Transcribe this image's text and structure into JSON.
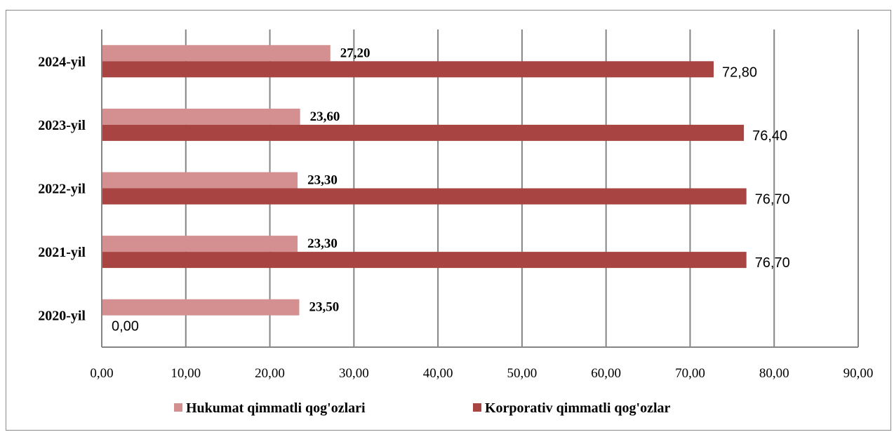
{
  "header_strip": "",
  "colors": {
    "hukumat": "#d49090",
    "korporativ": "#a84543",
    "grid": "#858585"
  },
  "chart_data": {
    "type": "bar",
    "orientation": "horizontal",
    "categories": [
      "2020-yil",
      "2021-yil",
      "2022-yil",
      "2023-yil",
      "2024-yil"
    ],
    "series": [
      {
        "name": "Hukumat qimmatli qog'ozlari",
        "values": [
          23.5,
          23.3,
          23.3,
          23.6,
          27.2
        ],
        "labels": [
          "23,50",
          "23,30",
          "23,30",
          "23,60",
          "27,20"
        ]
      },
      {
        "name": "Korporativ qimmatli qog'ozlar",
        "values": [
          0.0,
          76.7,
          76.7,
          76.4,
          72.8
        ],
        "labels": [
          "0,00",
          "76,70",
          "76,70",
          "76,40",
          "72,80"
        ]
      }
    ],
    "x_ticks": [
      "0,00",
      "10,00",
      "20,00",
      "30,00",
      "40,00",
      "50,00",
      "60,00",
      "70,00",
      "80,00",
      "90,00"
    ],
    "xlim": [
      0,
      90
    ],
    "grid": "vertical",
    "legend": "bottom"
  }
}
